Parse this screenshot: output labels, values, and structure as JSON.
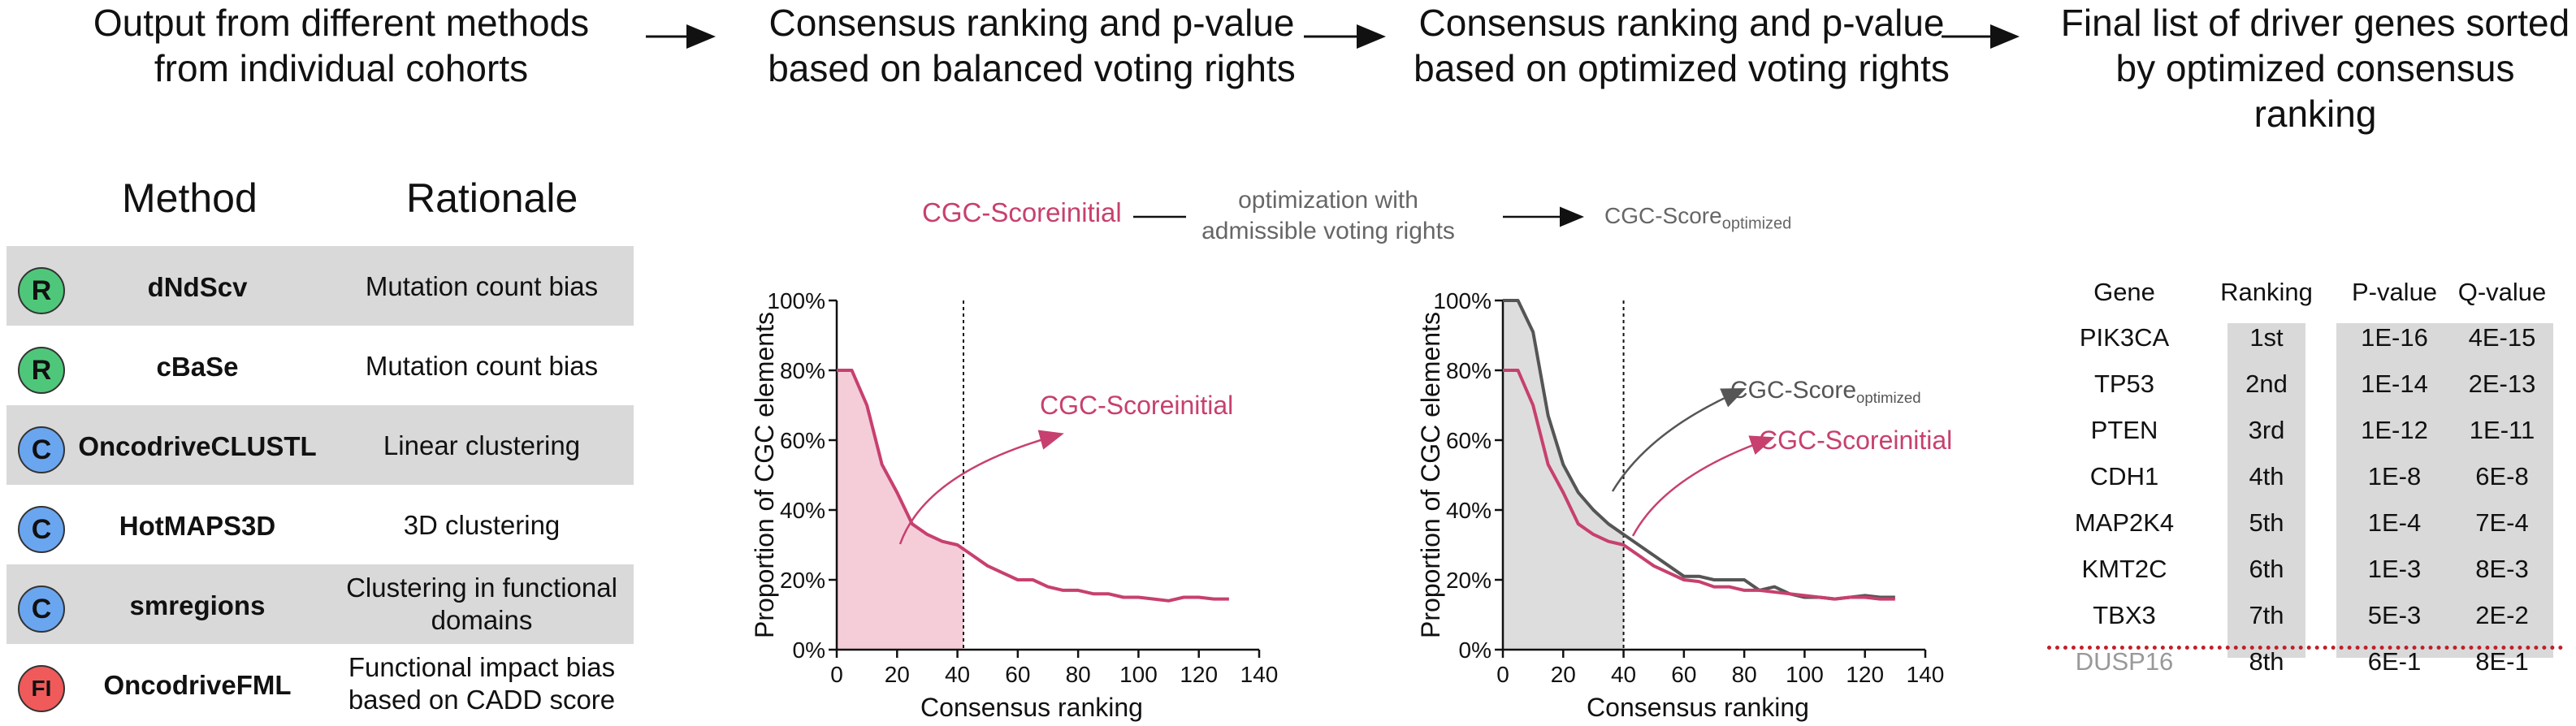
{
  "steps": [
    "Output from different methods\nfrom individual cohorts",
    "Consensus ranking and p-value\nbased on balanced voting rights",
    "Consensus ranking and p-value\nbased on optimized voting rights",
    "Final list of driver genes sorted\nby optimized consensus ranking"
  ],
  "methods_table": {
    "headers": [
      "Method",
      "Rationale"
    ],
    "rows": [
      {
        "badge": "R",
        "badge_color": "#4fc77a",
        "method": "dNdScv",
        "rationale": "Mutation count bias"
      },
      {
        "badge": "R",
        "badge_color": "#4fc77a",
        "method": "cBaSe",
        "rationale": "Mutation count bias"
      },
      {
        "badge": "C",
        "badge_color": "#6aa6f0",
        "method": "OncodriveCLUSTL",
        "rationale": "Linear clustering"
      },
      {
        "badge": "C",
        "badge_color": "#6aa6f0",
        "method": "HotMAPS3D",
        "rationale": "3D clustering"
      },
      {
        "badge": "C",
        "badge_color": "#6aa6f0",
        "method": "smregions",
        "rationale": "Clustering in functional\ndomains"
      },
      {
        "badge": "FI",
        "badge_color": "#f05a5a",
        "method": "OncodriveFML",
        "rationale": "Functional impact bias\nbased on CADD score"
      }
    ]
  },
  "optimization": {
    "left_base": "CGC-Score",
    "left_sub": "initial",
    "middle": "optimization with\nadmissible voting rights",
    "right_base": "CGC-Score",
    "right_sub": "optimized"
  },
  "colors": {
    "initial": "#c7406f",
    "optimized": "#555555",
    "fill_initial": "#f4cdd9",
    "fill_optimized": "#dddddd",
    "cutoff": "#c0202a"
  },
  "chart_data": [
    {
      "type": "line",
      "xlabel": "Consensus ranking",
      "ylabel": "Proportion of CGC elements",
      "xlim": [
        0,
        140
      ],
      "ylim": [
        0,
        100
      ],
      "xticks": [
        0,
        20,
        40,
        60,
        80,
        100,
        120,
        140
      ],
      "yticks": [
        "0%",
        "20%",
        "40%",
        "60%",
        "80%",
        "100%"
      ],
      "vline": 42,
      "series": [
        {
          "name": "CGC-Score initial",
          "label_base": "CGC-Score",
          "label_sub": "initial",
          "shade_until": 42,
          "x": [
            0,
            5,
            10,
            15,
            20,
            25,
            30,
            35,
            40,
            45,
            50,
            55,
            60,
            65,
            70,
            75,
            80,
            85,
            90,
            95,
            100,
            105,
            110,
            115,
            120,
            125,
            130
          ],
          "y": [
            80,
            80,
            70,
            53,
            45,
            36,
            33,
            31,
            30,
            27,
            24,
            22,
            20,
            20,
            18,
            17,
            17,
            16,
            16,
            15,
            15,
            14.5,
            14,
            15,
            15,
            14.5,
            14.5
          ]
        }
      ]
    },
    {
      "type": "line",
      "xlabel": "Consensus ranking",
      "ylabel": "Proportion of CGC elements",
      "xlim": [
        0,
        140
      ],
      "ylim": [
        0,
        100
      ],
      "xticks": [
        0,
        20,
        40,
        60,
        80,
        100,
        120,
        140
      ],
      "yticks": [
        "0%",
        "20%",
        "40%",
        "60%",
        "80%",
        "100%"
      ],
      "vline": 40,
      "series": [
        {
          "name": "CGC-Score optimized",
          "label_base": "CGC-Score",
          "label_sub": "optimized",
          "shade_until": 40,
          "x": [
            0,
            5,
            10,
            15,
            20,
            25,
            30,
            35,
            40,
            45,
            50,
            55,
            60,
            65,
            70,
            75,
            80,
            85,
            90,
            95,
            100,
            105,
            110,
            115,
            120,
            125,
            130
          ],
          "y": [
            100,
            100,
            91,
            67,
            53,
            45,
            40,
            36,
            33,
            30,
            27,
            24,
            21,
            21,
            20,
            20,
            20,
            17,
            18,
            16,
            15,
            15,
            14.5,
            15,
            15.5,
            15,
            15
          ]
        },
        {
          "name": "CGC-Score initial",
          "label_base": "CGC-Score",
          "label_sub": "initial",
          "x": [
            0,
            5,
            10,
            15,
            20,
            25,
            30,
            35,
            40,
            45,
            50,
            55,
            60,
            65,
            70,
            75,
            80,
            85,
            90,
            95,
            100,
            105,
            110,
            115,
            120,
            125,
            130
          ],
          "y": [
            80,
            80,
            70,
            53,
            45,
            36,
            33,
            31,
            30,
            27,
            24,
            22,
            20,
            19.5,
            18,
            18,
            17,
            17,
            16.5,
            16,
            15.5,
            15,
            14.5,
            15,
            15,
            14.5,
            14.5
          ]
        }
      ]
    }
  ],
  "gene_table": {
    "headers": [
      "Gene",
      "Ranking",
      "P-value",
      "Q-value"
    ],
    "rows": [
      [
        "PIK3CA",
        "1st",
        "1E-16",
        "4E-15"
      ],
      [
        "TP53",
        "2nd",
        "1E-14",
        "2E-13"
      ],
      [
        "PTEN",
        "3rd",
        "1E-12",
        "1E-11"
      ],
      [
        "CDH1",
        "4th",
        "1E-8",
        "6E-8"
      ],
      [
        "MAP2K4",
        "5th",
        "1E-4",
        "7E-4"
      ],
      [
        "KMT2C",
        "6th",
        "1E-3",
        "8E-3"
      ],
      [
        "TBX3",
        "7th",
        "5E-3",
        "2E-2"
      ],
      [
        "DUSP16",
        "8th",
        "6E-1",
        "8E-1"
      ]
    ],
    "cutoff_after_row": 7
  }
}
